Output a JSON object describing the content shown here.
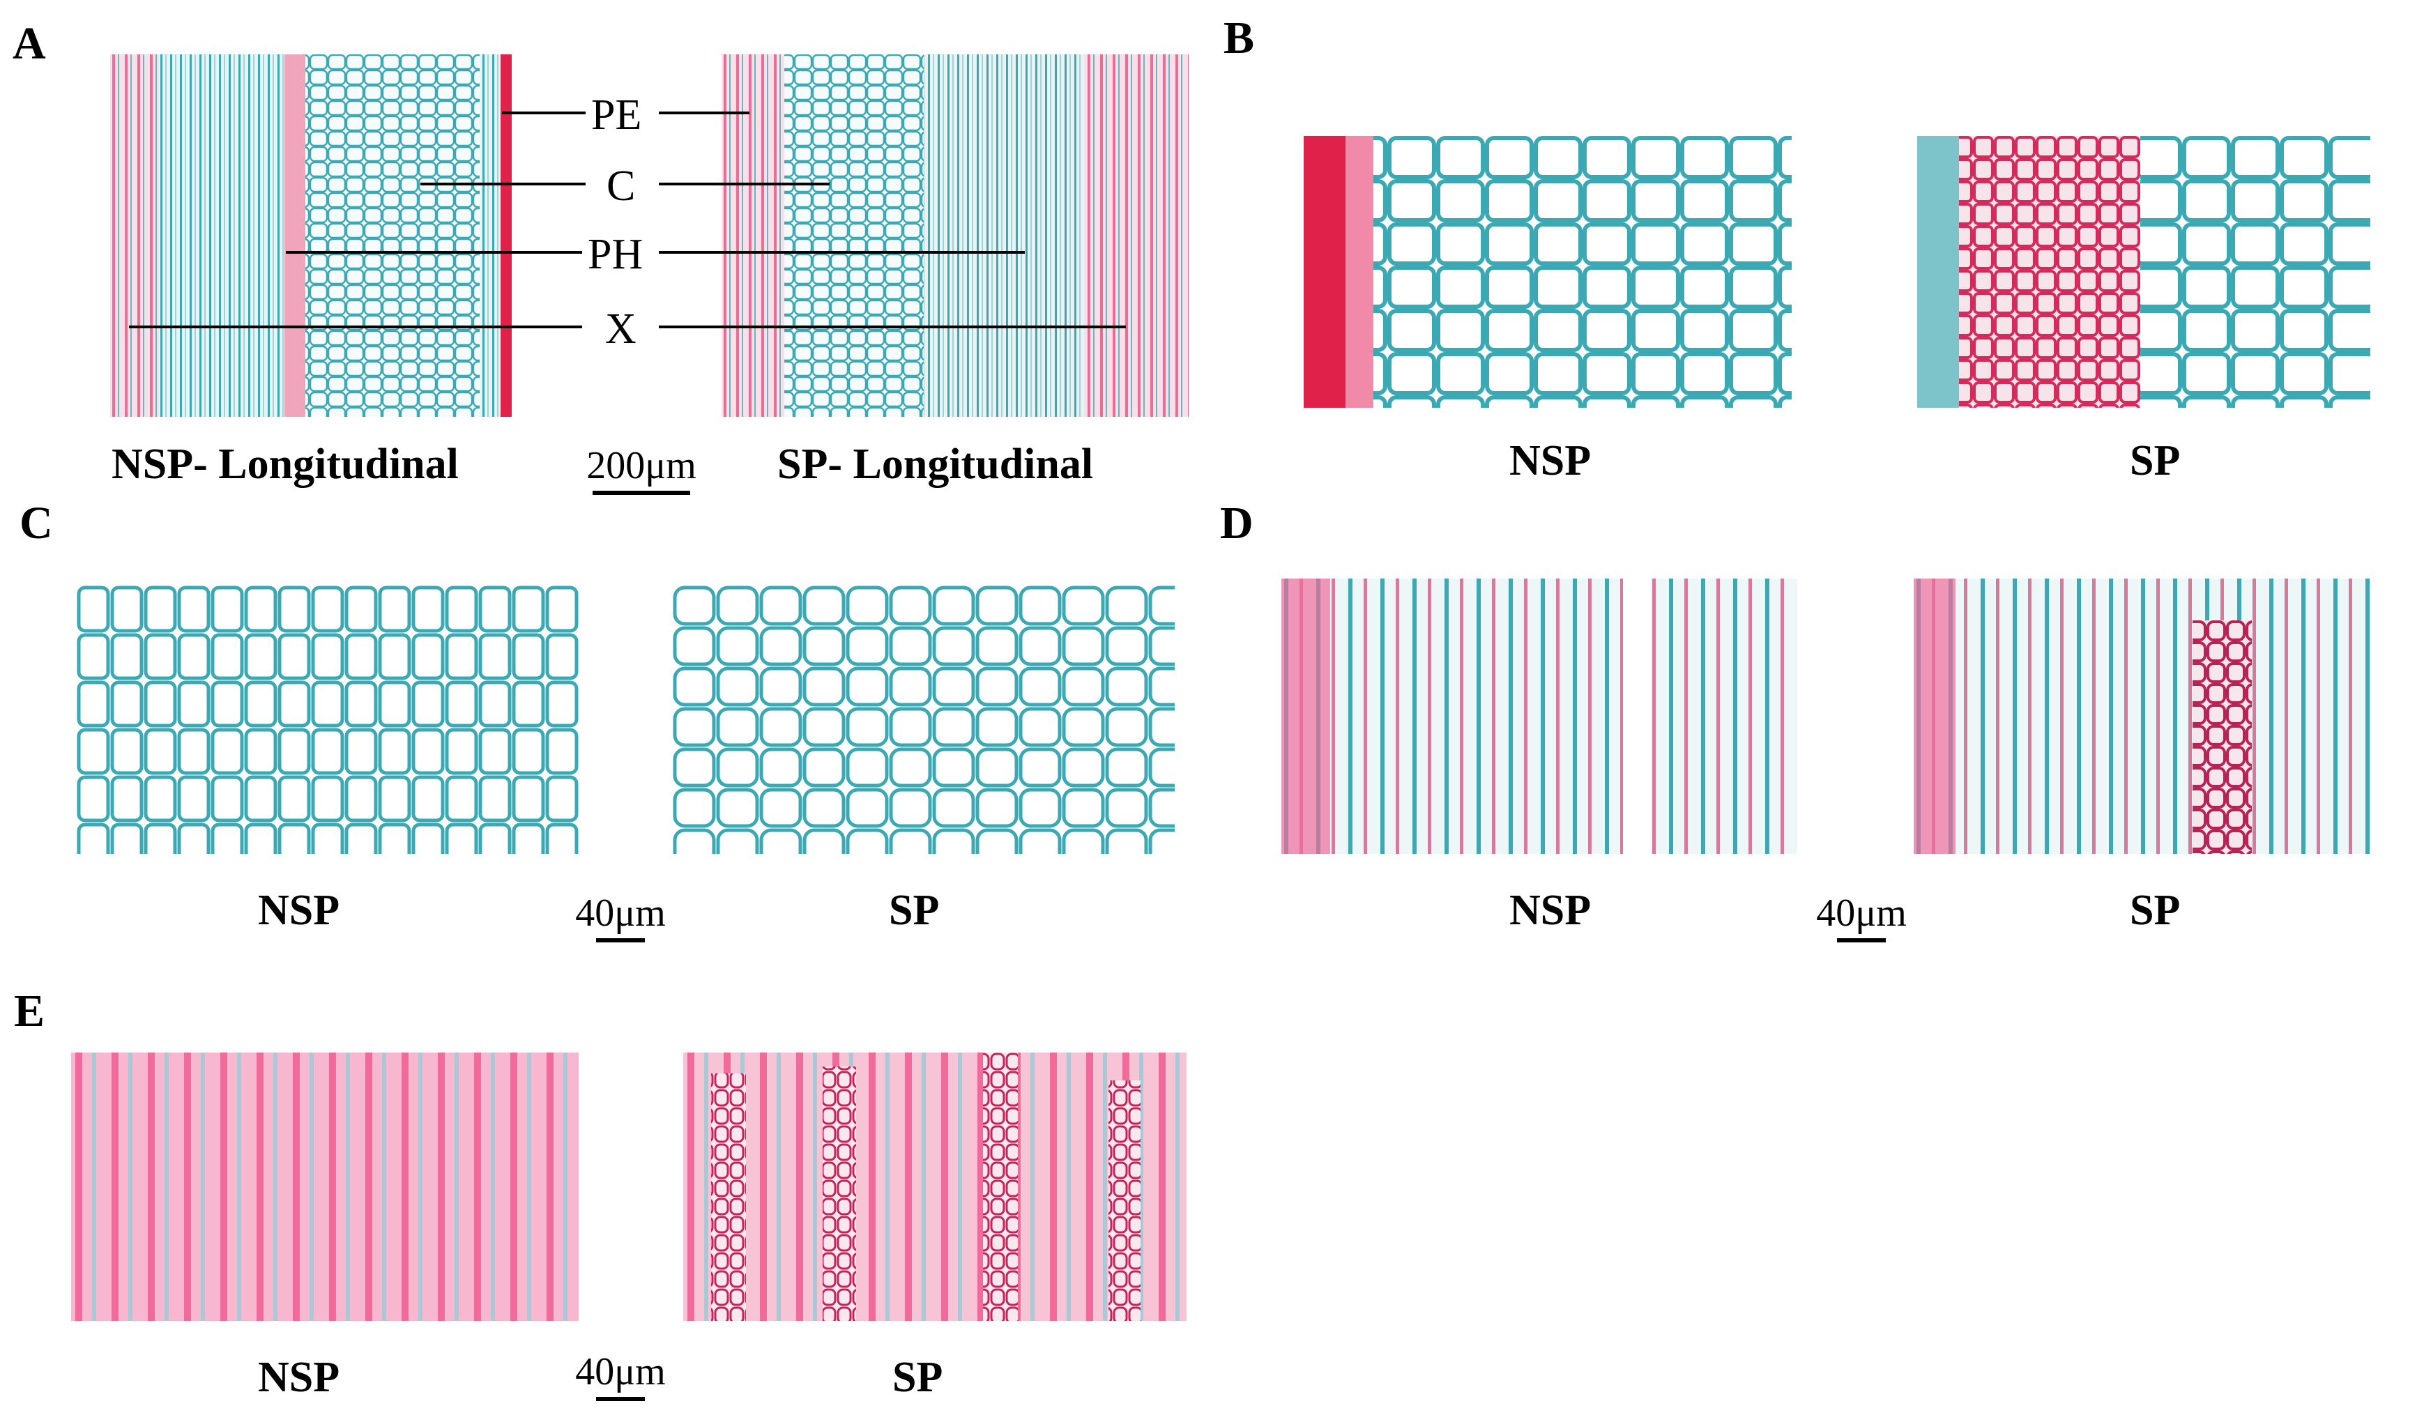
{
  "panels": {
    "A": {
      "letter": "A",
      "left_caption": "NSP- Longitudinal",
      "right_caption": "SP- Longitudinal",
      "scale": "200μm",
      "labels": {
        "pe": "PE",
        "c": "C",
        "ph": "PH",
        "x": "X"
      }
    },
    "B": {
      "letter": "B",
      "left_caption": "NSP",
      "right_caption": "SP"
    },
    "C": {
      "letter": "C",
      "left_caption": "NSP",
      "right_caption": "SP",
      "scale": "40μm"
    },
    "D": {
      "letter": "D",
      "left_caption": "NSP",
      "right_caption": "SP",
      "scale": "40μm"
    },
    "E": {
      "letter": "E",
      "left_caption": "NSP",
      "right_caption": "SP",
      "scale": "40μm"
    }
  },
  "colors": {
    "stain_blue": "#3aa9b4",
    "stain_red": "#e0224a",
    "stain_pink": "#f07aa8",
    "background": "#ffffff"
  }
}
